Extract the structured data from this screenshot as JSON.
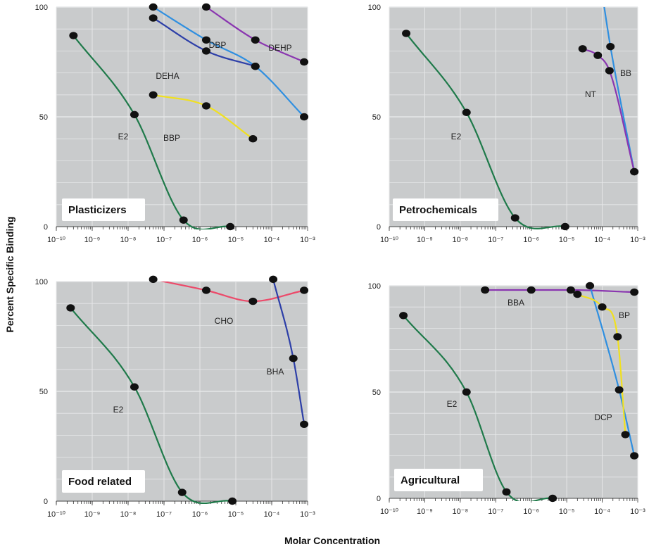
{
  "ylabel": "Percent Specific Binding",
  "xlabel": "Molar Concentration",
  "colors": {
    "panel_bg": "#c9cbcc",
    "grid": "#e6e7e8",
    "marker": "#111111",
    "E2": "#1f7a4a",
    "light_blue": "#2f8fe0",
    "dark_blue": "#2d3fa8",
    "purple": "#8a36b0",
    "yellow": "#f0e020",
    "red": "#ec4a6a"
  },
  "chart_data": [
    {
      "type": "line",
      "panel": "tl",
      "title": "Plasticizers",
      "x_scale": "log",
      "xlim": [
        1e-10,
        0.001
      ],
      "ylim": [
        0,
        100
      ],
      "x_ticks": [
        "-10",
        "-9",
        "-8",
        "-7",
        "-6",
        "-5",
        "-4",
        "-3"
      ],
      "y_ticks": [
        "0",
        "50",
        "100"
      ],
      "series": [
        {
          "name": "E2",
          "color": "#1f7a4a",
          "x": [
            3e-10,
            1.5e-08,
            3.5e-07,
            7e-06
          ],
          "y": [
            87,
            51,
            3,
            0
          ]
        },
        {
          "name": "DBP",
          "color": "#2f8fe0",
          "x": [
            5e-08,
            1.5e-06,
            3.5e-05,
            0.0008
          ],
          "y": [
            100,
            85,
            73,
            50
          ]
        },
        {
          "name": "DEHA",
          "color": "#2d3fa8",
          "x": [
            5e-08,
            1.5e-06,
            3.5e-05
          ],
          "y": [
            95,
            80,
            73
          ]
        },
        {
          "name": "DEHP",
          "color": "#8a36b0",
          "x": [
            1.5e-06,
            3.5e-05,
            0.0008
          ],
          "y": [
            100,
            85,
            75
          ]
        },
        {
          "name": "BBP",
          "color": "#f0e020",
          "x": [
            5e-08,
            1.5e-06,
            3e-05
          ],
          "y": [
            60,
            55,
            40
          ]
        }
      ],
      "annotations": [
        "E2",
        "DBP",
        "DEHA",
        "DEHP",
        "BBP"
      ]
    },
    {
      "type": "line",
      "panel": "tr",
      "title": "Petrochemicals",
      "x_scale": "log",
      "xlim": [
        1e-10,
        0.001
      ],
      "ylim": [
        0,
        100
      ],
      "x_ticks": [
        "-10",
        "-9",
        "-8",
        "-7",
        "-6",
        "-5",
        "-4",
        "-3"
      ],
      "y_ticks": [
        "0",
        "50",
        "100"
      ],
      "series": [
        {
          "name": "E2",
          "color": "#1f7a4a",
          "x": [
            3e-10,
            1.5e-08,
            3.5e-07,
            9e-06
          ],
          "y": [
            88,
            52,
            4,
            0
          ]
        },
        {
          "name": "BB",
          "color": "#2f8fe0",
          "x": [
            0.0001,
            0.00017,
            0.0008
          ],
          "y": [
            106,
            82,
            25
          ]
        },
        {
          "name": "NT",
          "color": "#8a36b0",
          "x": [
            2.8e-05,
            7.5e-05,
            0.00016,
            0.0008
          ],
          "y": [
            81,
            78,
            71,
            25
          ]
        }
      ],
      "annotations": [
        "E2",
        "BB",
        "NT"
      ]
    },
    {
      "type": "line",
      "panel": "bl",
      "title": "Food related",
      "x_scale": "log",
      "xlim": [
        1e-10,
        0.001
      ],
      "ylim": [
        0,
        100
      ],
      "x_ticks": [
        "-10",
        "-9",
        "-8",
        "-7",
        "-6",
        "-5",
        "-4",
        "-3"
      ],
      "y_ticks": [
        "0",
        "50",
        "100"
      ],
      "series": [
        {
          "name": "E2",
          "color": "#1f7a4a",
          "x": [
            2.5e-10,
            1.5e-08,
            3.2e-07,
            8e-06
          ],
          "y": [
            88,
            52,
            4,
            0
          ]
        },
        {
          "name": "CHO",
          "color": "#ec4a6a",
          "x": [
            5e-08,
            1.5e-06,
            3e-05,
            0.0008
          ],
          "y": [
            101,
            96,
            91,
            96
          ]
        },
        {
          "name": "BHA",
          "color": "#2d3fa8",
          "x": [
            0.00011,
            0.0004,
            0.0008
          ],
          "y": [
            101,
            65,
            35
          ]
        }
      ],
      "annotations": [
        "E2",
        "CHO",
        "BHA"
      ]
    },
    {
      "type": "line",
      "panel": "br",
      "title": "Agricultural",
      "x_scale": "log",
      "xlim": [
        1e-10,
        0.001
      ],
      "ylim": [
        0,
        100
      ],
      "x_ticks": [
        "-10",
        "-9",
        "-8",
        "-7",
        "-6",
        "-5",
        "-4",
        "-3"
      ],
      "y_ticks": [
        "0",
        "50",
        "100"
      ],
      "series": [
        {
          "name": "E2",
          "color": "#1f7a4a",
          "x": [
            2.5e-10,
            1.5e-08,
            2e-07,
            4e-06
          ],
          "y": [
            86,
            50,
            3,
            0
          ]
        },
        {
          "name": "BBA",
          "color": "#8a36b0",
          "x": [
            5e-08,
            1e-06,
            1.3e-05,
            0.0008
          ],
          "y": [
            98,
            98,
            98,
            97
          ]
        },
        {
          "name": "BP",
          "color": "#2f8fe0",
          "x": [
            4.5e-05,
            0.0003,
            0.0008
          ],
          "y": [
            100,
            51,
            20
          ]
        },
        {
          "name": "DCP",
          "color": "#f0e020",
          "x": [
            2e-05,
            0.0001,
            0.00027,
            0.00045
          ],
          "y": [
            96,
            90,
            76,
            30
          ]
        }
      ],
      "annotations": [
        "E2",
        "BBA",
        "BP",
        "DCP"
      ]
    }
  ]
}
